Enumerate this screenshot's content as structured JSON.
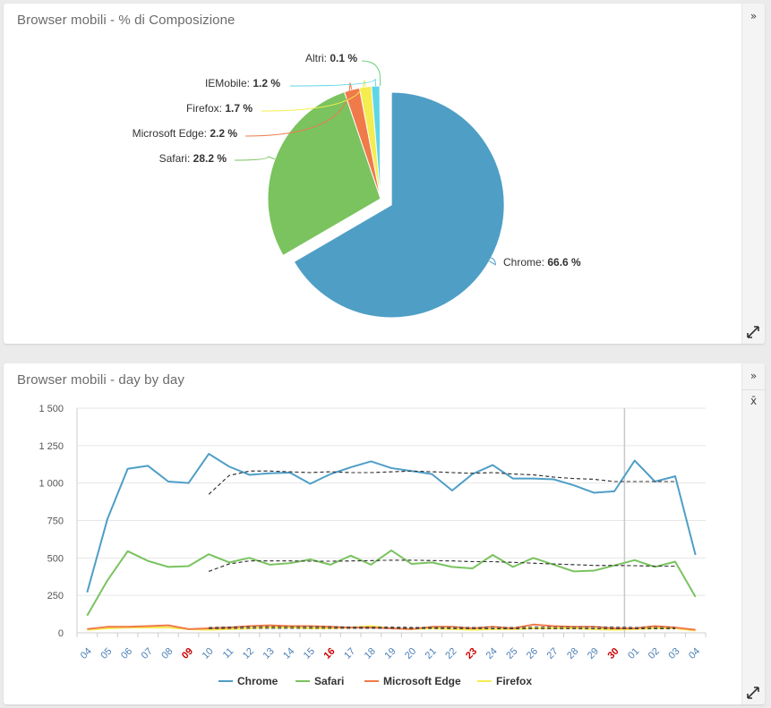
{
  "pie_card": {
    "title": "Browser mobili - % di Composizione",
    "collapse_icon": "double-chevron-right-icon",
    "collapse_glyph": "»",
    "expand_icon": "expand-arrows-icon"
  },
  "line_card": {
    "title": "Browser mobili - day by day",
    "collapse_icon": "double-chevron-right-icon",
    "collapse_glyph": "»",
    "mean_icon": "x-bar-mean-icon",
    "mean_glyph": "x̄",
    "expand_icon": "expand-arrows-icon"
  },
  "chart_data": [
    {
      "type": "pie",
      "title": "Browser mobili - % di Composizione",
      "slices": [
        {
          "name": "Chrome",
          "value": 66.6,
          "color": "#4f9ec6",
          "label": "66.6 %",
          "sliced": true
        },
        {
          "name": "Safari",
          "value": 28.2,
          "color": "#7ac35f",
          "label": "28.2 %"
        },
        {
          "name": "Microsoft Edge",
          "value": 2.2,
          "color": "#f07a4a",
          "label": "2.2 %"
        },
        {
          "name": "Firefox",
          "value": 1.7,
          "color": "#f5ec4f",
          "label": "1.7 %"
        },
        {
          "name": "IEMobile",
          "value": 1.2,
          "color": "#5ed6e6",
          "label": "1.2 %"
        },
        {
          "name": "Altri",
          "value": 0.1,
          "color": "#6cd07a",
          "label": "0.1 %"
        }
      ]
    },
    {
      "type": "line",
      "title": "Browser mobili - day by day",
      "categories": [
        "04",
        "05",
        "06",
        "07",
        "08",
        "09",
        "10",
        "11",
        "12",
        "13",
        "14",
        "15",
        "16",
        "17",
        "18",
        "19",
        "20",
        "21",
        "22",
        "23",
        "24",
        "25",
        "26",
        "27",
        "28",
        "29",
        "30",
        "01",
        "02",
        "03",
        "04"
      ],
      "highlight_categories_color": "#cc0000",
      "highlight_indices": [
        5,
        12,
        19,
        26
      ],
      "category_color": "#4a7fb5",
      "ylim": [
        0,
        1500
      ],
      "yticks": [
        0,
        250,
        500,
        750,
        1000,
        1250,
        1500
      ],
      "ytick_labels": [
        "0",
        "250",
        "500",
        "750",
        "1 000",
        "1 250",
        "1 500"
      ],
      "grid": true,
      "legend_position": "bottom",
      "reference_line_category": "01",
      "series": [
        {
          "name": "Chrome",
          "color": "#4f9ec6",
          "values": [
            270,
            760,
            1095,
            1115,
            1010,
            1000,
            1195,
            1110,
            1055,
            1065,
            1070,
            995,
            1060,
            1105,
            1145,
            1100,
            1080,
            1060,
            950,
            1060,
            1120,
            1030,
            1030,
            1025,
            985,
            935,
            945,
            1150,
            1010,
            1045,
            520
          ],
          "trend": [
            null,
            null,
            null,
            null,
            null,
            null,
            925,
            1050,
            1080,
            1080,
            1075,
            1070,
            1075,
            1070,
            1070,
            1075,
            1080,
            1075,
            1070,
            1065,
            1070,
            1060,
            1055,
            1040,
            1030,
            1025,
            1010,
            1010,
            1010,
            1010,
            null
          ]
        },
        {
          "name": "Safari",
          "color": "#7ac35f",
          "values": [
            115,
            350,
            545,
            480,
            440,
            445,
            525,
            470,
            500,
            455,
            465,
            490,
            455,
            515,
            455,
            550,
            460,
            470,
            440,
            430,
            520,
            440,
            500,
            455,
            410,
            415,
            450,
            485,
            440,
            475,
            240
          ],
          "trend": [
            null,
            null,
            null,
            null,
            null,
            null,
            410,
            460,
            480,
            480,
            480,
            478,
            478,
            480,
            482,
            485,
            485,
            482,
            480,
            475,
            475,
            470,
            465,
            460,
            455,
            450,
            450,
            448,
            445,
            445,
            null
          ]
        },
        {
          "name": "Microsoft Edge",
          "color": "#f07a4a",
          "values": [
            25,
            40,
            40,
            45,
            50,
            25,
            30,
            35,
            45,
            50,
            45,
            45,
            40,
            35,
            35,
            30,
            25,
            40,
            40,
            30,
            40,
            30,
            55,
            45,
            40,
            40,
            30,
            30,
            45,
            35,
            20
          ],
          "trend": [
            null,
            null,
            null,
            null,
            null,
            null,
            35,
            38,
            40,
            40,
            40,
            40,
            40,
            38,
            37,
            37,
            36,
            36,
            36,
            36,
            36,
            36,
            37,
            37,
            37,
            37,
            37,
            36,
            36,
            36,
            null
          ]
        },
        {
          "name": "Firefox",
          "color": "#f5ec4f",
          "values": [
            20,
            30,
            35,
            35,
            35,
            25,
            20,
            25,
            30,
            35,
            35,
            30,
            30,
            35,
            45,
            30,
            25,
            30,
            25,
            20,
            25,
            25,
            30,
            30,
            30,
            25,
            20,
            25,
            30,
            30,
            15
          ],
          "trend": [
            null,
            null,
            null,
            null,
            null,
            null,
            28,
            29,
            30,
            30,
            30,
            30,
            30,
            30,
            30,
            30,
            29,
            29,
            28,
            28,
            27,
            27,
            27,
            27,
            27,
            27,
            27,
            27,
            27,
            27,
            null
          ]
        }
      ]
    }
  ]
}
